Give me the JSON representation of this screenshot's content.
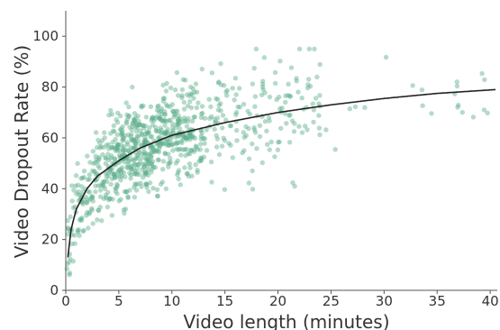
{
  "chart_data": {
    "type": "scatter",
    "title": "",
    "xlabel": "Video length (minutes)",
    "ylabel": "Video Dropout Rate (%)",
    "xlim": [
      0,
      40.5
    ],
    "ylim": [
      0,
      110
    ],
    "x_ticks": [
      "0",
      "5",
      "10",
      "15",
      "20",
      "25",
      "30",
      "35",
      "40"
    ],
    "y_ticks": [
      "0",
      "20",
      "40",
      "60",
      "80",
      "100"
    ],
    "grid": false,
    "legend": "none",
    "point_color": "#5aae8a",
    "curve_color": "#222222",
    "points_approx_count": 900,
    "trend_curve": [
      {
        "x": 0.2,
        "y": 13
      },
      {
        "x": 0.5,
        "y": 24
      },
      {
        "x": 1,
        "y": 32
      },
      {
        "x": 2,
        "y": 40
      },
      {
        "x": 3,
        "y": 45
      },
      {
        "x": 5,
        "y": 51
      },
      {
        "x": 7,
        "y": 56
      },
      {
        "x": 10,
        "y": 61
      },
      {
        "x": 15,
        "y": 66
      },
      {
        "x": 20,
        "y": 70
      },
      {
        "x": 25,
        "y": 73
      },
      {
        "x": 30,
        "y": 75.5
      },
      {
        "x": 35,
        "y": 77.5
      },
      {
        "x": 40.5,
        "y": 79
      }
    ]
  }
}
